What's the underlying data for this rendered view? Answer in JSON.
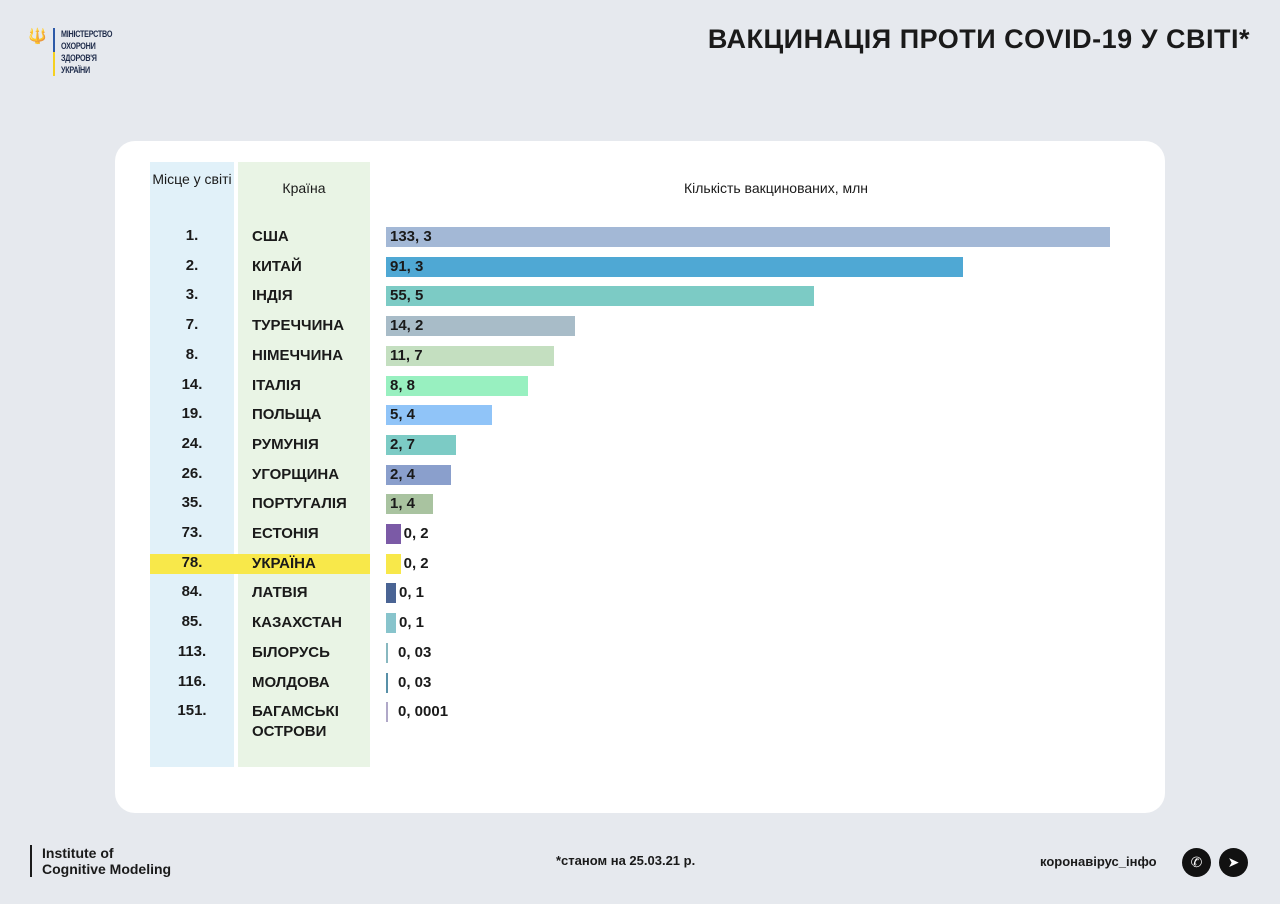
{
  "header": {
    "logo_text": [
      "МІНІСТЕРСТВО",
      "ОХОРОНИ",
      "ЗДОРОВ'Я",
      "УКРАЇНИ"
    ],
    "title": "ВАКЦИНАЦІЯ ПРОТИ COVID-19 У СВІТІ*"
  },
  "chart_data": {
    "type": "bar",
    "orientation": "horizontal",
    "col_rank_header": "Місце у світі",
    "col_country_header": "Країна",
    "value_header": "Кількість вакцинованих, млн",
    "highlight": "УКРАЇНА",
    "rows": [
      {
        "rank": "1.",
        "country": "США",
        "value": 133.3,
        "label": "133, 3",
        "color": "#a3b8d6"
      },
      {
        "rank": "2.",
        "country": "КИТАЙ",
        "value": 91.3,
        "label": "91, 3",
        "color": "#4fa8d4"
      },
      {
        "rank": "3.",
        "country": "ІНДІЯ",
        "value": 55.5,
        "label": "55, 5",
        "color": "#7ccbc5"
      },
      {
        "rank": "7.",
        "country": "ТУРЕЧЧИНА",
        "value": 14.2,
        "label": "14, 2",
        "color": "#a8bcc8"
      },
      {
        "rank": "8.",
        "country": "НІМЕЧЧИНА",
        "value": 11.7,
        "label": "11, 7",
        "color": "#c4dfc0"
      },
      {
        "rank": "14.",
        "country": "ІТАЛІЯ",
        "value": 8.8,
        "label": "8, 8",
        "color": "#98f0c0"
      },
      {
        "rank": "19.",
        "country": "ПОЛЬЩА",
        "value": 5.4,
        "label": "5, 4",
        "color": "#90c4f8"
      },
      {
        "rank": "24.",
        "country": "РУМУНІЯ",
        "value": 2.7,
        "label": "2, 7",
        "color": "#7ccbc5"
      },
      {
        "rank": "26.",
        "country": "УГОРЩИНА",
        "value": 2.4,
        "label": "2, 4",
        "color": "#8a9fcc"
      },
      {
        "rank": "35.",
        "country": "ПОРТУГАЛІЯ",
        "value": 1.4,
        "label": "1, 4",
        "color": "#a9c3a0"
      },
      {
        "rank": "73.",
        "country": "ЕСТОНІЯ",
        "value": 0.2,
        "label": "0, 2",
        "color": "#7b5aa6"
      },
      {
        "rank": "78.",
        "country": "УКРАЇНА",
        "value": 0.2,
        "label": "0, 2",
        "color": "#f8e84a"
      },
      {
        "rank": "84.",
        "country": "ЛАТВІЯ",
        "value": 0.1,
        "label": "0, 1",
        "color": "#4a6494"
      },
      {
        "rank": "85.",
        "country": "КАЗАХСТАН",
        "value": 0.1,
        "label": "0, 1",
        "color": "#88c4cc"
      },
      {
        "rank": "113.",
        "country": "БІЛОРУСЬ",
        "value": 0.03,
        "label": "0, 03",
        "color": "#88b8c0"
      },
      {
        "rank": "116.",
        "country": "МОЛДОВА",
        "value": 0.03,
        "label": "0, 03",
        "color": "#5890a8"
      },
      {
        "rank": "151.",
        "country": "БАГАМСЬКІ ОСТРОВИ",
        "value": 0.0001,
        "label": "0, 0001",
        "color": "#b0a8c8"
      }
    ]
  },
  "footer": {
    "institute": [
      "Institute of",
      "Cognitive Modeling"
    ],
    "note": "*станом на 25.03.21 р.",
    "site": "коронавірус_інфо",
    "social_icons": [
      "viber-icon",
      "telegram-icon"
    ]
  }
}
